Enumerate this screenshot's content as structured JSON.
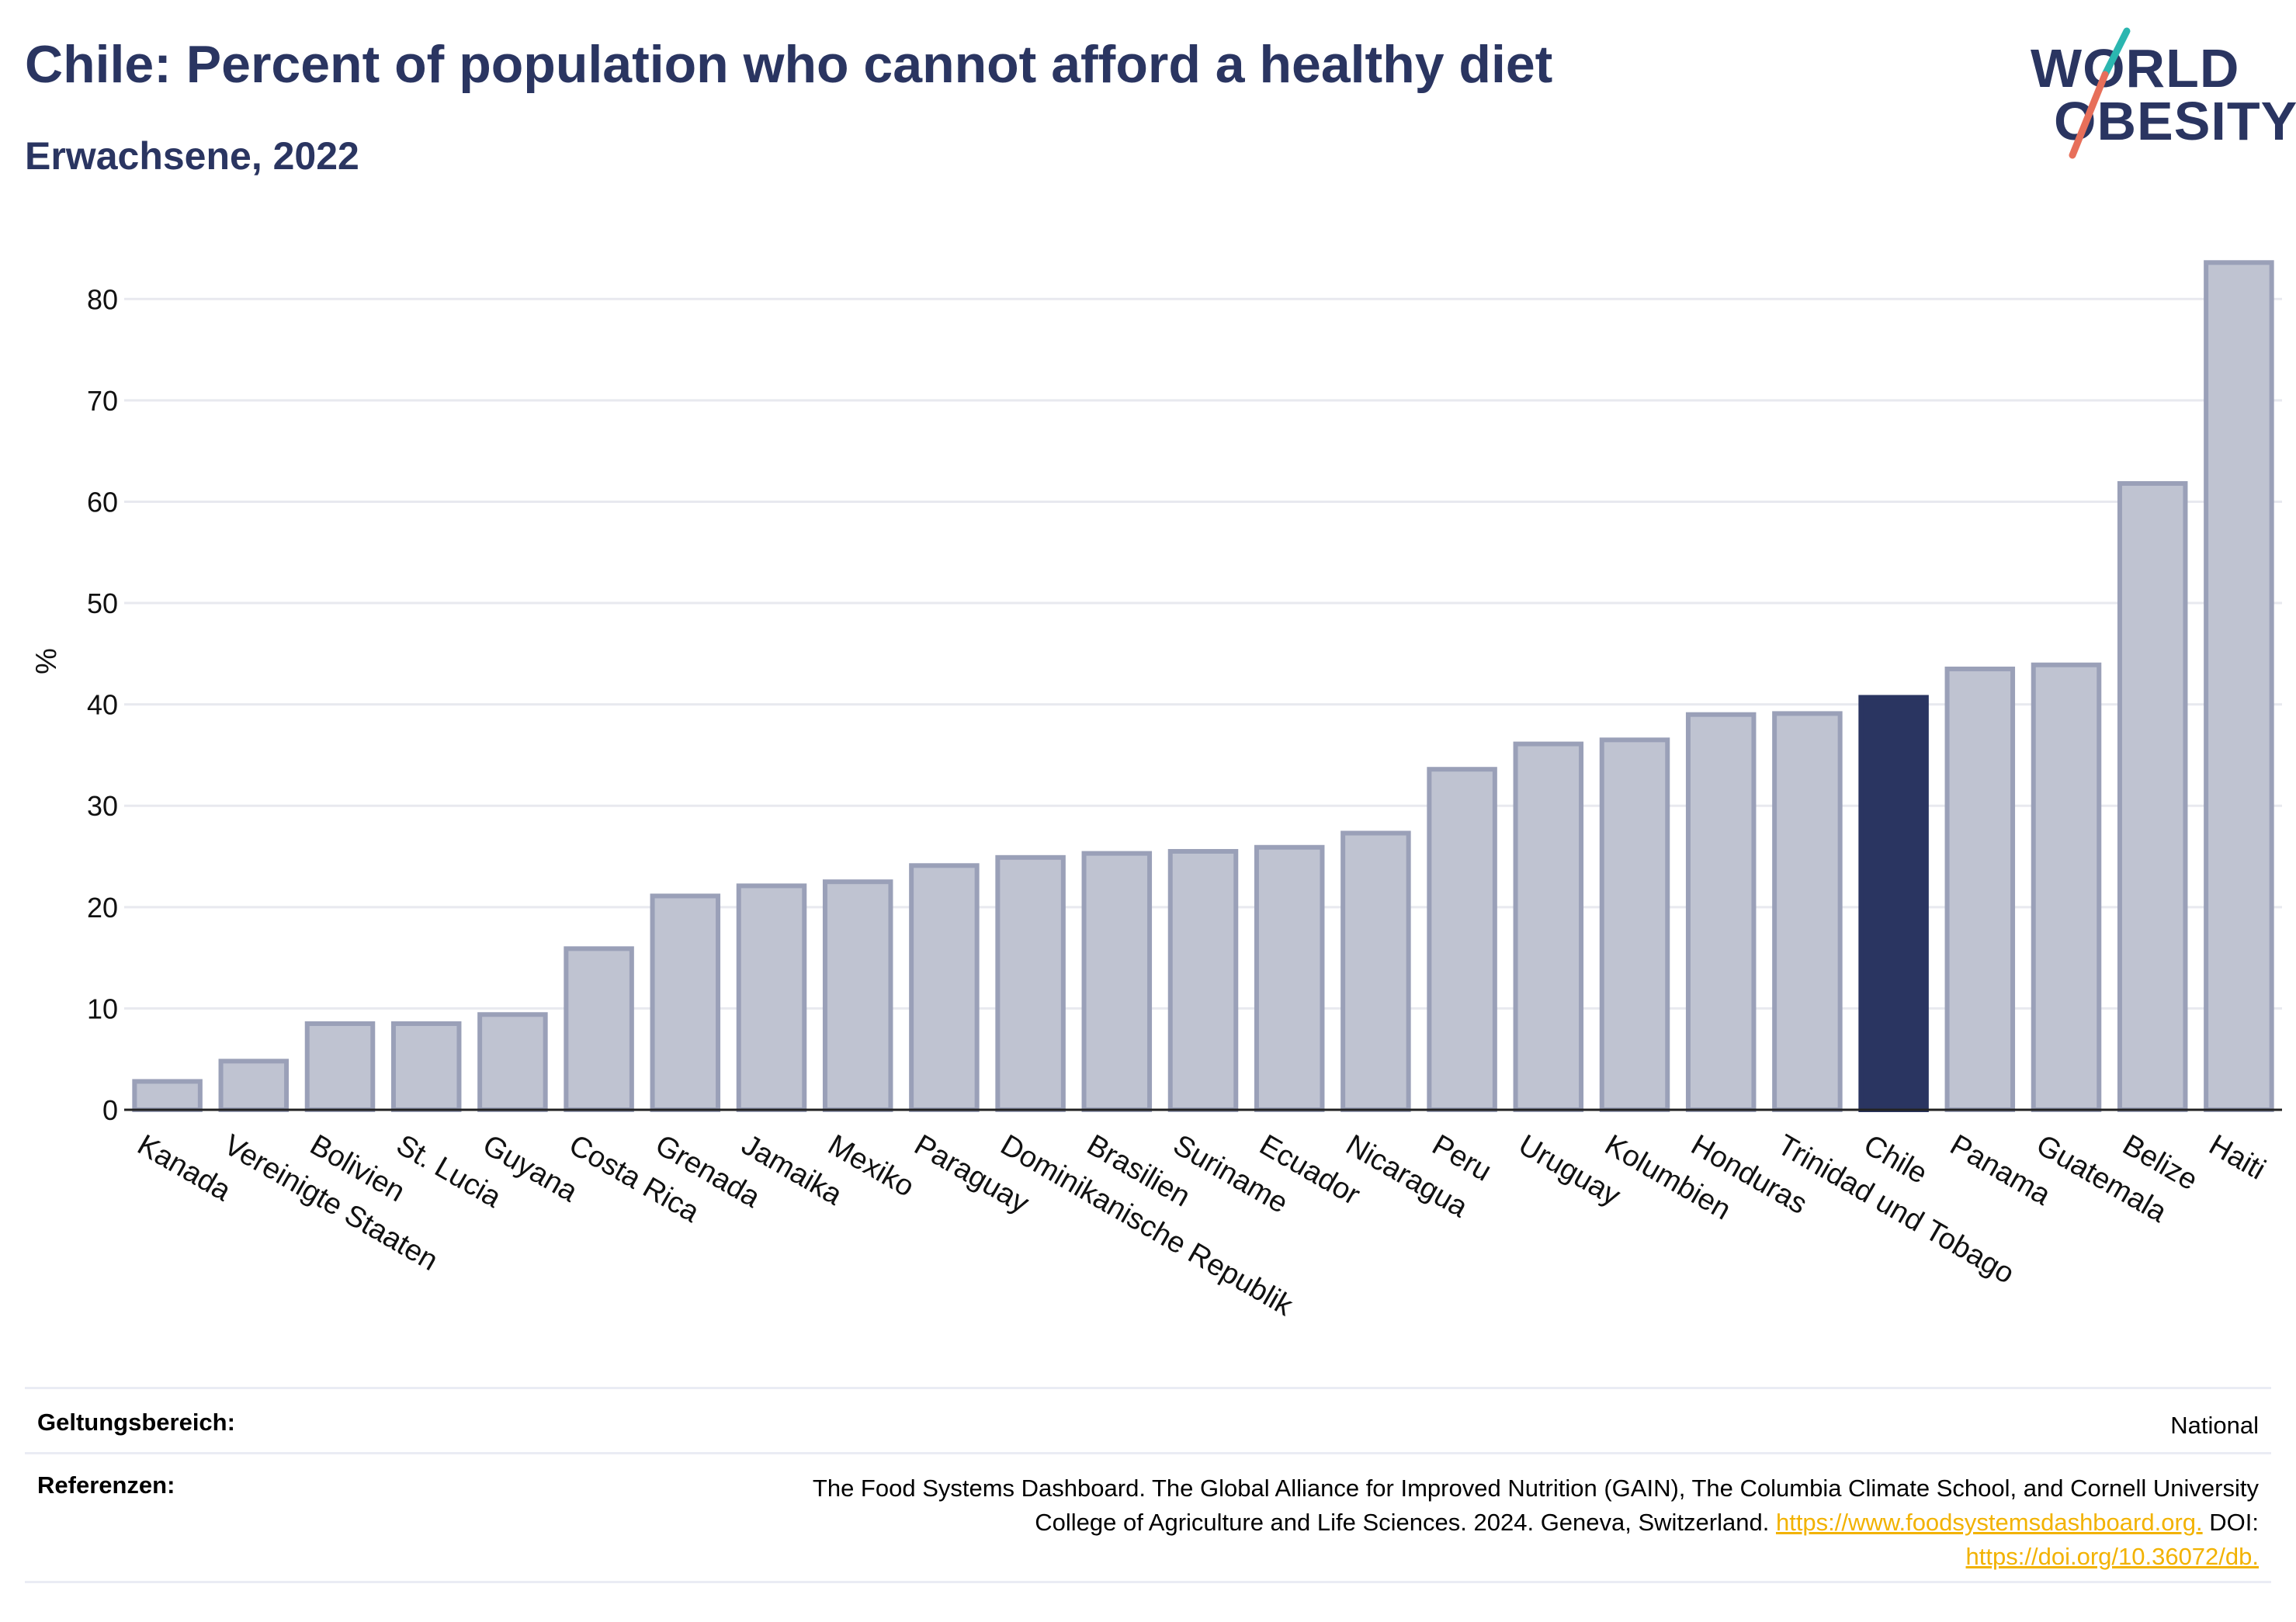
{
  "header": {
    "title": "Chile: Percent of population who cannot afford a healthy diet",
    "subtitle": "Erwachsene, 2022"
  },
  "logo": {
    "line1": "WORLD",
    "line2": "OBESITY",
    "colors": {
      "text": "#2a3561",
      "slash_teal": "#2bb6b0",
      "slash_coral": "#e76f5a"
    }
  },
  "colors": {
    "bar": "#bfc3d1",
    "bar_edge": "#9aa0b8",
    "highlight": "#2a3561",
    "grid": "#e8e9ef",
    "axis_text": "#111111"
  },
  "chart_data": {
    "type": "bar",
    "ylabel": "%",
    "ylim": [
      0,
      85
    ],
    "yticks": [
      0,
      10,
      20,
      30,
      40,
      50,
      60,
      70,
      80
    ],
    "grid": true,
    "highlight": "Chile",
    "categories": [
      "Kanada",
      "Vereinigte Staaten",
      "Bolivien",
      "St. Lucia",
      "Guyana",
      "Costa Rica",
      "Grenada",
      "Jamaika",
      "Mexiko",
      "Paraguay",
      "Dominikanische Republik",
      "Brasilien",
      "Suriname",
      "Ecuador",
      "Nicaragua",
      "Peru",
      "Uruguay",
      "Kolumbien",
      "Honduras",
      "Trinidad und Tobago",
      "Chile",
      "Panama",
      "Guatemala",
      "Belize",
      "Haiti"
    ],
    "values": [
      2.8,
      4.8,
      8.5,
      8.5,
      9.4,
      15.9,
      21.1,
      22.1,
      22.5,
      24.1,
      24.9,
      25.3,
      25.5,
      25.9,
      27.3,
      33.6,
      36.1,
      36.5,
      39.0,
      39.1,
      40.7,
      43.5,
      43.9,
      61.8,
      83.6
    ]
  },
  "footer": {
    "scope_label": "Geltungsbereich:",
    "scope_value": "National",
    "refs_label": "Referenzen:",
    "refs_line1": "The Food Systems Dashboard. The Global Alliance for Improved Nutrition (GAIN), The Columbia Climate School, and Cornell University",
    "refs_line2_text": "College of Agriculture and Life Sciences. 2024. Geneva, Switzerland.",
    "refs_link1": "https://www.foodsystemsdashboard.org.",
    "refs_doi_label": "DOI:",
    "refs_link2": "https://doi.org/10.36072/db."
  }
}
